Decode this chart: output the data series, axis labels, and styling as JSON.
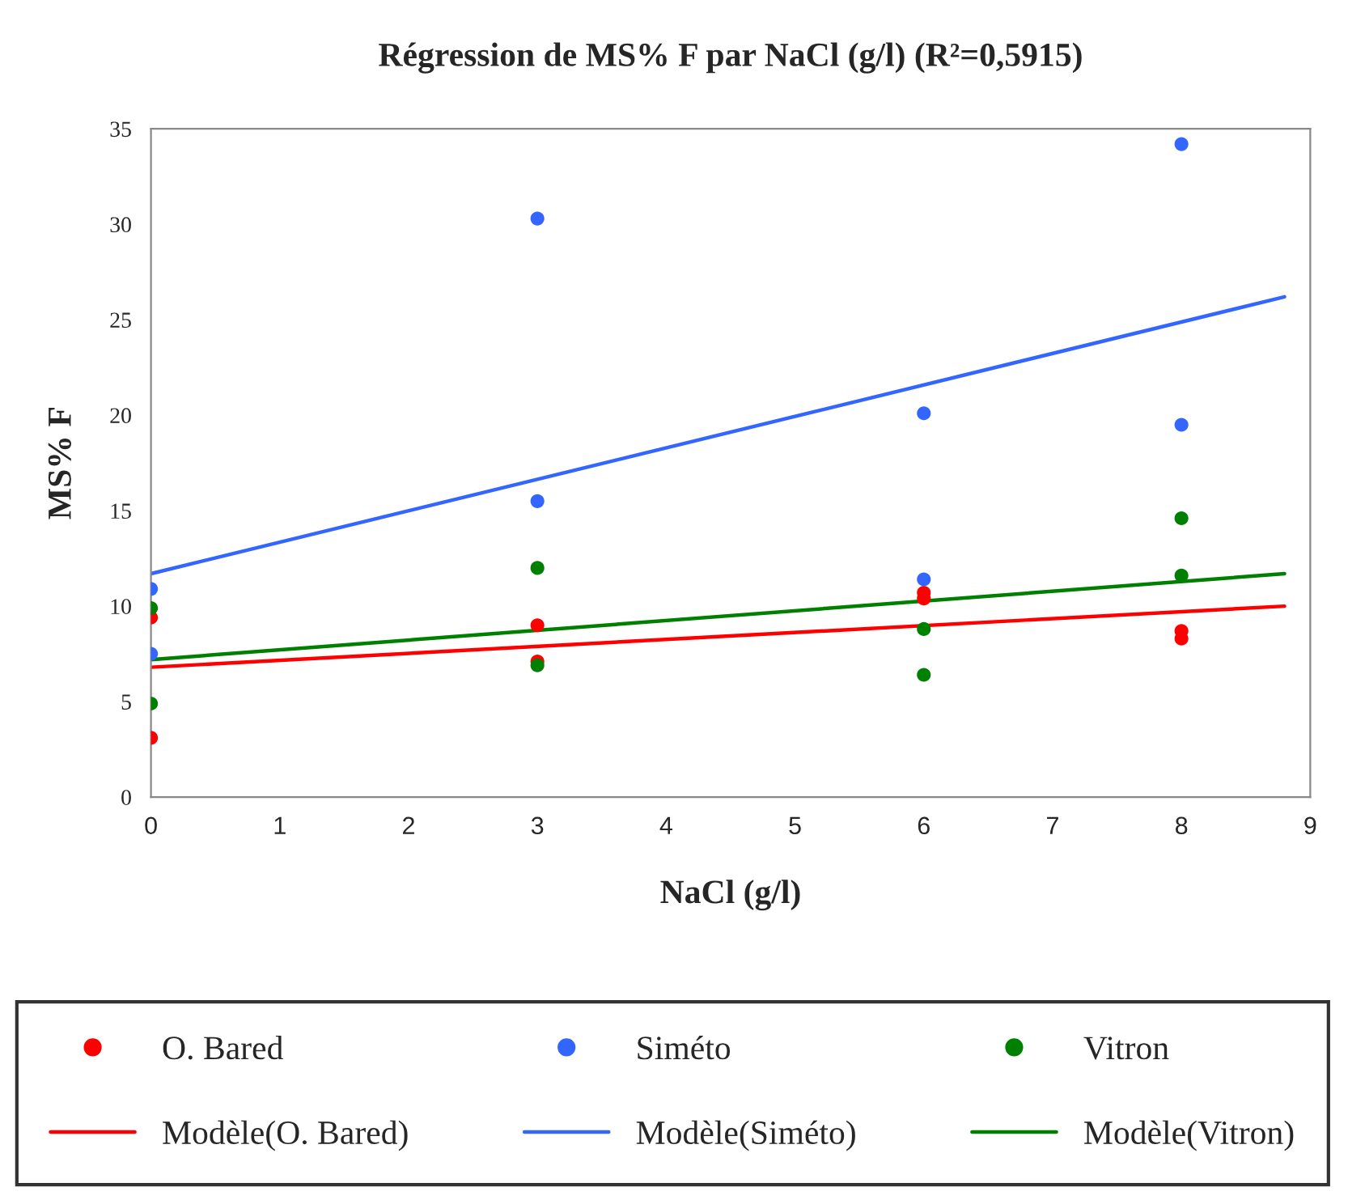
{
  "chart_data": {
    "type": "scatter",
    "title": "Régression de MS% F par NaCl (g/l) (R²=0,5915)",
    "xlabel": "NaCl (g/l)",
    "ylabel": "MS% F",
    "xlim": [
      0,
      9
    ],
    "xticks": [
      0,
      1,
      2,
      3,
      4,
      5,
      6,
      7,
      8,
      9
    ],
    "ylim": [
      0,
      35
    ],
    "yticks": [
      0,
      5,
      10,
      15,
      20,
      25,
      30,
      35
    ],
    "grid": false,
    "legend": "bottom",
    "marker": "circle",
    "series": [
      {
        "name": "O. Bared",
        "color": "#ff0000",
        "x": [
          0,
          0,
          3,
          3,
          6,
          6,
          8,
          8
        ],
        "values": [
          3.1,
          9.4,
          9.0,
          7.1,
          10.7,
          10.4,
          8.7,
          8.3
        ]
      },
      {
        "name": "Modèle(O. Bared)",
        "color": "#ff0000",
        "type": "line",
        "marker": "none",
        "line_style": "solid",
        "x": [
          0,
          8.8
        ],
        "values": [
          6.8,
          10.0
        ]
      },
      {
        "name": "Siméto",
        "color": "#3366ff",
        "x": [
          0,
          0,
          3,
          3,
          6,
          6,
          8,
          8
        ],
        "values": [
          10.9,
          7.5,
          30.3,
          15.5,
          20.1,
          11.4,
          34.2,
          19.5
        ]
      },
      {
        "name": "Modèle(Siméto)",
        "color": "#3366ff",
        "type": "line",
        "marker": "none",
        "line_style": "solid",
        "x": [
          0,
          8.8
        ],
        "values": [
          11.7,
          26.2
        ]
      },
      {
        "name": "Vitron",
        "color": "#008000",
        "x": [
          0,
          0,
          3,
          3,
          6,
          6,
          8,
          8
        ],
        "values": [
          9.9,
          4.9,
          12.0,
          6.9,
          8.8,
          6.4,
          14.6,
          11.6
        ]
      },
      {
        "name": "Modèle(Vitron)",
        "color": "#008000",
        "type": "line",
        "marker": "none",
        "line_style": "solid",
        "x": [
          0,
          8.8
        ],
        "values": [
          7.2,
          11.7
        ]
      }
    ]
  }
}
